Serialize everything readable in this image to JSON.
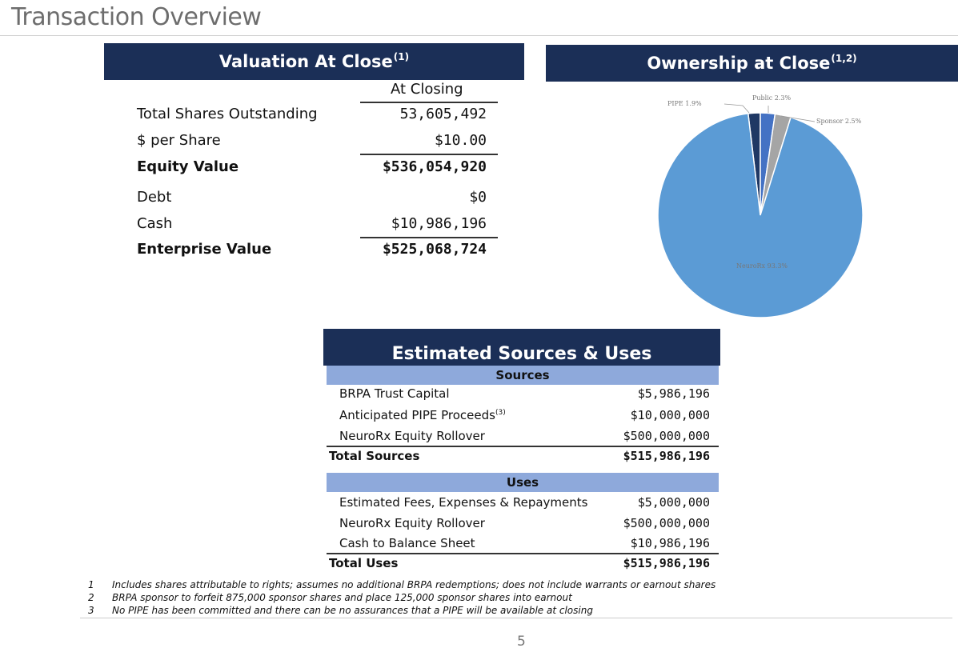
{
  "title": "Transaction Overview",
  "valuation": {
    "header": "Valuation At Close",
    "header_sup": "(1)",
    "column_header": "At Closing",
    "rows": [
      {
        "label": "Total Shares Outstanding",
        "value": "53,605,492"
      },
      {
        "label": "$ per Share",
        "value": "$10.00"
      },
      {
        "label": "Equity Value",
        "value": "$536,054,920"
      },
      {
        "label": "Debt",
        "value": "$0"
      },
      {
        "label": "Cash",
        "value": "$10,986,196"
      },
      {
        "label": "Enterprise Value",
        "value": "$525,068,724"
      }
    ]
  },
  "ownership": {
    "header": "Ownership at Close",
    "header_sup": "(1,2)",
    "labels": {
      "pipe": "PIPE 1.9%",
      "public": "Public 2.3%",
      "sponsor": "Sponsor 2.5%",
      "neurorx": "NeuroRx 93.3%"
    },
    "colors": {
      "neurorx": "#5b9bd5",
      "pipe": "#1f3864",
      "public": "#4472c4",
      "sponsor": "#a5a5a5"
    }
  },
  "chart_data": {
    "type": "pie",
    "categories": [
      "PIPE",
      "Public",
      "Sponsor",
      "NeuroRx"
    ],
    "values": [
      1.9,
      2.3,
      2.5,
      93.3
    ],
    "labels": [
      "PIPE 1.9%",
      "Public 2.3%",
      "Sponsor 2.5%",
      "NeuroRx 93.3%"
    ],
    "title": "Ownership at Close(1,2)"
  },
  "sources_uses": {
    "header": "Estimated Sources & Uses",
    "sources_band": "Sources",
    "sources": [
      {
        "label": "BRPA Trust Capital",
        "value": "$5,986,196"
      },
      {
        "label": "Anticipated PIPE Proceeds",
        "sup": "(3)",
        "value": "$10,000,000"
      },
      {
        "label": "NeuroRx Equity Rollover",
        "value": "$500,000,000"
      }
    ],
    "sources_total": {
      "label": "Total Sources",
      "value": "$515,986,196"
    },
    "uses_band": "Uses",
    "uses": [
      {
        "label": "Estimated Fees, Expenses & Repayments",
        "value": "$5,000,000"
      },
      {
        "label": "NeuroRx Equity Rollover",
        "value": "$500,000,000"
      },
      {
        "label": "Cash to Balance Sheet",
        "value": "$10,986,196"
      }
    ],
    "uses_total": {
      "label": "Total Uses",
      "value": "$515,986,196"
    }
  },
  "footnotes": [
    {
      "num": "1",
      "text": "Includes shares attributable to rights; assumes no additional BRPA redemptions; does not include warrants or earnout shares"
    },
    {
      "num": "2",
      "text": "BRPA sponsor to forfeit 875,000 sponsor shares and place 125,000 sponsor shares into earnout"
    },
    {
      "num": "3",
      "text": "No PIPE has been committed and there can be no assurances that a PIPE will be available at closing"
    }
  ],
  "page_number": "5"
}
